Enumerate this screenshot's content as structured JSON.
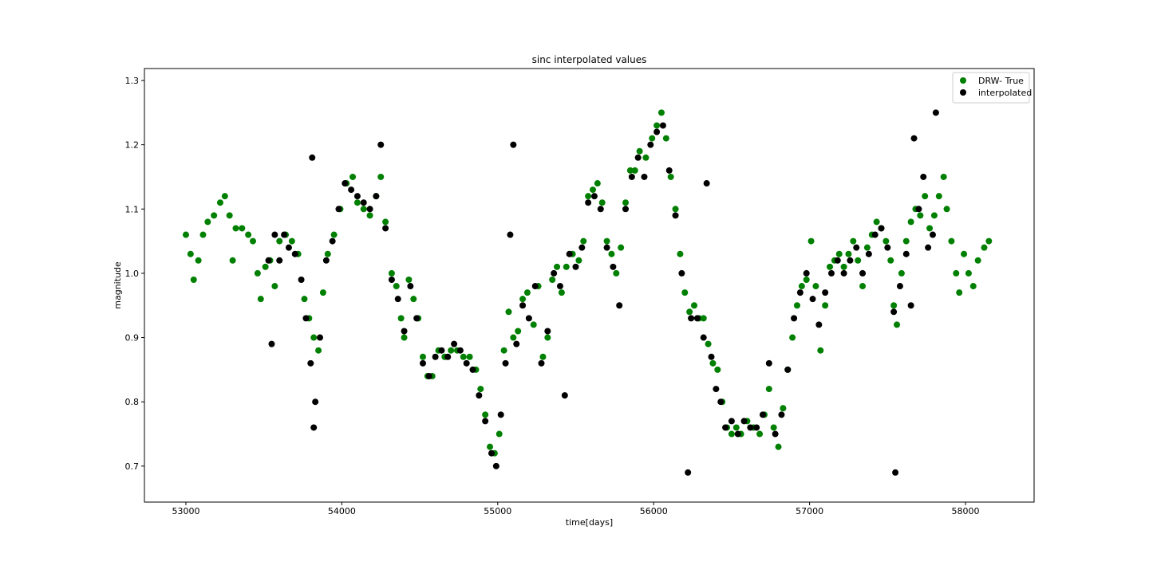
{
  "chart_data": {
    "type": "scatter",
    "title": "sinc interpolated values",
    "x_label": "time[days]",
    "y_label": "magnitude",
    "xlim": [
      52734,
      58440
    ],
    "ylim": [
      0.644,
      1.3186
    ],
    "xticks": [
      53000,
      54000,
      55000,
      56000,
      57000,
      58000
    ],
    "yticks": [
      0.7,
      0.8,
      0.9,
      1.0,
      1.1,
      1.2,
      1.3
    ],
    "legend": "upper right",
    "series": [
      {
        "name": "DRW- True",
        "color": "#008000",
        "x": [
          53000,
          53030,
          53050,
          53080,
          53110,
          53140,
          53180,
          53220,
          53250,
          53280,
          53300,
          53320,
          53360,
          53400,
          53430,
          53460,
          53480,
          53510,
          53540,
          53570,
          53600,
          53640,
          53680,
          53720,
          53760,
          53790,
          53820,
          53850,
          53880,
          53910,
          53950,
          53990,
          54030,
          54070,
          54100,
          54140,
          54180,
          54220,
          54250,
          54280,
          54320,
          54350,
          54380,
          54400,
          54430,
          54460,
          54490,
          54520,
          54550,
          54580,
          54620,
          54660,
          54700,
          54740,
          54780,
          54820,
          54860,
          54890,
          54920,
          54950,
          54980,
          55010,
          55040,
          55070,
          55100,
          55130,
          55160,
          55190,
          55230,
          55260,
          55290,
          55320,
          55350,
          55380,
          55410,
          55440,
          55480,
          55520,
          55550,
          55580,
          55610,
          55640,
          55670,
          55700,
          55730,
          55760,
          55790,
          55820,
          55850,
          55880,
          55910,
          55950,
          55990,
          56020,
          56050,
          56080,
          56110,
          56140,
          56170,
          56200,
          56230,
          56260,
          56290,
          56320,
          56350,
          56380,
          56410,
          56440,
          56470,
          56500,
          56530,
          56560,
          56600,
          56640,
          56680,
          56710,
          56740,
          56770,
          56800,
          56830,
          56860,
          56890,
          56920,
          56950,
          56980,
          57010,
          57040,
          57070,
          57100,
          57130,
          57160,
          57190,
          57220,
          57250,
          57280,
          57310,
          57340,
          57370,
          57400,
          57430,
          57460,
          57490,
          57520,
          57540,
          57560,
          57590,
          57620,
          57650,
          57680,
          57710,
          57740,
          57770,
          57800,
          57830,
          57860,
          57880,
          57910,
          57940,
          57960,
          57990,
          58020,
          58050,
          58080,
          58120,
          58150
        ],
        "values": [
          1.06,
          1.03,
          0.99,
          1.02,
          1.06,
          1.08,
          1.09,
          1.11,
          1.12,
          1.09,
          1.02,
          1.07,
          1.07,
          1.06,
          1.05,
          1.0,
          0.96,
          1.01,
          1.02,
          0.98,
          1.05,
          1.06,
          1.05,
          1.03,
          0.96,
          0.93,
          0.9,
          0.88,
          0.97,
          1.03,
          1.06,
          1.1,
          1.14,
          1.15,
          1.11,
          1.1,
          1.09,
          1.12,
          1.15,
          1.08,
          1.0,
          0.98,
          0.93,
          0.9,
          0.99,
          0.96,
          0.93,
          0.87,
          0.84,
          0.84,
          0.88,
          0.87,
          0.88,
          0.88,
          0.87,
          0.87,
          0.85,
          0.82,
          0.78,
          0.73,
          0.72,
          0.75,
          0.88,
          0.94,
          0.9,
          0.91,
          0.96,
          0.97,
          0.92,
          0.98,
          0.87,
          0.9,
          0.99,
          1.01,
          0.97,
          1.01,
          1.03,
          1.02,
          1.05,
          1.12,
          1.13,
          1.14,
          1.11,
          1.05,
          1.03,
          1.0,
          1.04,
          1.11,
          1.16,
          1.16,
          1.19,
          1.18,
          1.21,
          1.23,
          1.25,
          1.21,
          1.15,
          1.1,
          1.03,
          0.97,
          0.94,
          0.95,
          0.93,
          0.93,
          0.89,
          0.86,
          0.85,
          0.8,
          0.76,
          0.75,
          0.76,
          0.75,
          0.77,
          0.76,
          0.75,
          0.78,
          0.82,
          0.76,
          0.73,
          0.79,
          0.85,
          0.9,
          0.95,
          0.98,
          0.99,
          1.05,
          0.98,
          0.88,
          0.95,
          1.01,
          1.02,
          1.03,
          1.01,
          1.03,
          1.05,
          1.02,
          0.98,
          1.04,
          1.06,
          1.08,
          1.07,
          1.05,
          1.02,
          0.95,
          0.92,
          1.0,
          1.05,
          1.08,
          1.1,
          1.09,
          1.12,
          1.07,
          1.09,
          1.12,
          1.15,
          1.1,
          1.05,
          1.0,
          0.97,
          1.03,
          1.0,
          0.98,
          1.02,
          1.04,
          1.05
        ]
      },
      {
        "name": "interpolated",
        "color": "#000000",
        "x": [
          53530,
          53550,
          53570,
          53600,
          53630,
          53660,
          53700,
          53740,
          53770,
          53800,
          53810,
          53820,
          53830,
          53860,
          53900,
          53940,
          53980,
          54020,
          54060,
          54100,
          54140,
          54180,
          54220,
          54250,
          54280,
          54320,
          54360,
          54400,
          54440,
          54480,
          54520,
          54560,
          54600,
          54640,
          54680,
          54720,
          54760,
          54800,
          54840,
          54880,
          54920,
          54960,
          54990,
          55020,
          55050,
          55080,
          55100,
          55120,
          55160,
          55200,
          55240,
          55280,
          55320,
          55360,
          55400,
          55430,
          55460,
          55500,
          55540,
          55580,
          55620,
          55660,
          55700,
          55740,
          55780,
          55820,
          55860,
          55900,
          55940,
          55980,
          56020,
          56060,
          56100,
          56140,
          56180,
          56220,
          56240,
          56280,
          56320,
          56340,
          56370,
          56400,
          56430,
          56460,
          56500,
          56540,
          56580,
          56620,
          56660,
          56700,
          56740,
          56780,
          56820,
          56860,
          56900,
          56940,
          56980,
          57020,
          57060,
          57100,
          57140,
          57180,
          57220,
          57260,
          57300,
          57340,
          57380,
          57420,
          57460,
          57500,
          57540,
          57550,
          57580,
          57620,
          57650,
          57670,
          57700,
          57730,
          57760,
          57790,
          57810
        ],
        "values": [
          1.02,
          0.89,
          1.06,
          1.02,
          1.06,
          1.04,
          1.03,
          0.99,
          0.93,
          0.86,
          1.18,
          0.76,
          0.8,
          0.9,
          1.02,
          1.05,
          1.1,
          1.14,
          1.13,
          1.12,
          1.11,
          1.1,
          1.12,
          1.2,
          1.07,
          0.99,
          0.96,
          0.91,
          0.98,
          0.93,
          0.86,
          0.84,
          0.87,
          0.88,
          0.87,
          0.89,
          0.88,
          0.86,
          0.85,
          0.81,
          0.77,
          0.72,
          0.7,
          0.78,
          0.86,
          1.06,
          1.2,
          0.89,
          0.95,
          0.93,
          0.98,
          0.86,
          0.91,
          1.0,
          0.98,
          0.81,
          1.03,
          1.01,
          1.04,
          1.11,
          1.12,
          1.1,
          1.04,
          1.01,
          0.95,
          1.1,
          1.15,
          1.18,
          1.15,
          1.2,
          1.22,
          1.23,
          1.16,
          1.09,
          1.0,
          0.69,
          0.93,
          0.93,
          0.9,
          1.14,
          0.87,
          0.82,
          0.8,
          0.76,
          0.77,
          0.75,
          0.77,
          0.76,
          0.76,
          0.78,
          0.86,
          0.75,
          0.78,
          0.85,
          0.93,
          0.97,
          1.0,
          0.96,
          0.92,
          0.97,
          1.0,
          1.02,
          1.0,
          1.02,
          1.04,
          1.0,
          1.03,
          1.06,
          1.07,
          1.04,
          0.94,
          0.69,
          0.98,
          1.03,
          0.95,
          1.21,
          1.1,
          1.15,
          1.04,
          1.06,
          1.25
        ]
      }
    ]
  }
}
